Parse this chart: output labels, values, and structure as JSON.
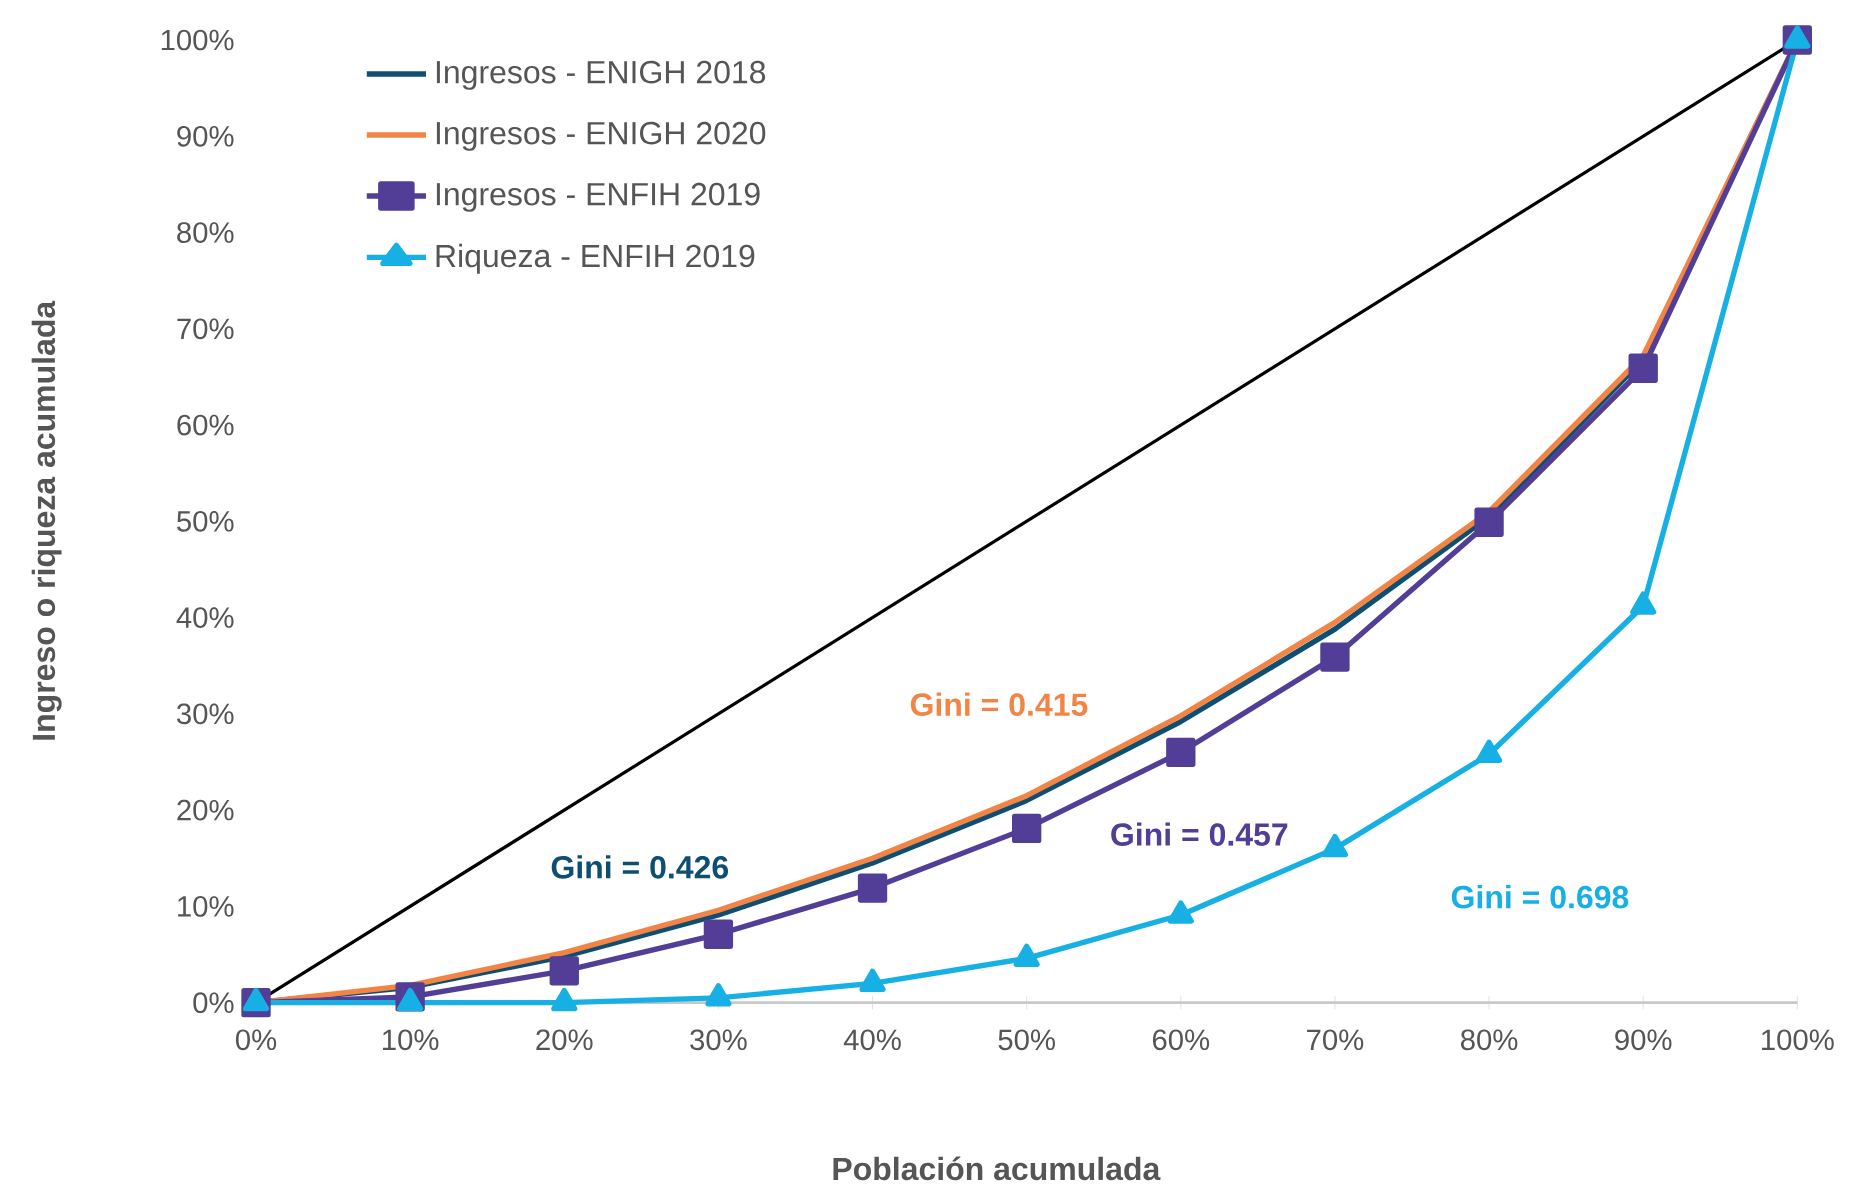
{
  "chart_data": {
    "type": "line",
    "xlabel": "Población acumulada",
    "ylabel": "Ingreso o riqueza acumulada",
    "x": [
      0,
      10,
      20,
      30,
      40,
      50,
      60,
      70,
      80,
      90,
      100
    ],
    "series": [
      {
        "name": "Ingresos - ENIGH 2018",
        "color": "#0d4f73",
        "marker": "none",
        "values": [
          0,
          1.6,
          4.8,
          9.1,
          14.5,
          21,
          29.2,
          38.8,
          50.5,
          66.8,
          100
        ]
      },
      {
        "name": "Ingresos - ENIGH 2020",
        "color": "#f28545",
        "marker": "none",
        "values": [
          0,
          1.8,
          5.2,
          9.6,
          15,
          21.5,
          29.8,
          39.5,
          51,
          67.2,
          100
        ]
      },
      {
        "name": "Ingresos - ENFIH 2019",
        "color": "#523e96",
        "marker": "square",
        "values": [
          0,
          0.6,
          3.3,
          7.1,
          11.9,
          18.1,
          26,
          35.9,
          49.9,
          65.9,
          100
        ]
      },
      {
        "name": "Riqueza - ENFIH 2019",
        "color": "#17b0e5",
        "marker": "triangle",
        "values": [
          0,
          0,
          0,
          0.5,
          2,
          4.6,
          9.1,
          16,
          25.8,
          41.2,
          100
        ]
      },
      {
        "color": "#000000",
        "marker": "none",
        "x": [
          0,
          100
        ],
        "values": [
          0,
          100
        ]
      }
    ],
    "annotations": [
      "Gini = 0.426",
      "Gini = 0.415",
      "Gini = 0.457",
      "Gini = 0.698"
    ],
    "xlim": [
      0,
      100
    ],
    "ylim": [
      0,
      100
    ],
    "xticks": [
      {
        "value": 0,
        "label": "0%"
      },
      {
        "value": 10,
        "label": "10%"
      },
      {
        "value": 20,
        "label": "20%"
      },
      {
        "value": 30,
        "label": "30%"
      },
      {
        "value": 40,
        "label": "40%"
      },
      {
        "value": 50,
        "label": "50%"
      },
      {
        "value": 60,
        "label": "60%"
      },
      {
        "value": 70,
        "label": "70%"
      },
      {
        "value": 80,
        "label": "80%"
      },
      {
        "value": 90,
        "label": "90%"
      },
      {
        "value": 100,
        "label": "100%"
      }
    ],
    "yticks": [
      {
        "value": 0,
        "label": "0%"
      },
      {
        "value": 10,
        "label": "10%"
      },
      {
        "value": 20,
        "label": "20%"
      },
      {
        "value": 30,
        "label": "30%"
      },
      {
        "value": 40,
        "label": "40%"
      },
      {
        "value": 50,
        "label": "50%"
      },
      {
        "value": 60,
        "label": "60%"
      },
      {
        "value": 70,
        "label": "70%"
      },
      {
        "value": 80,
        "label": "80%"
      },
      {
        "value": 90,
        "label": "90%"
      },
      {
        "value": 100,
        "label": "100%"
      }
    ],
    "legend": "top left",
    "grid": false
  }
}
